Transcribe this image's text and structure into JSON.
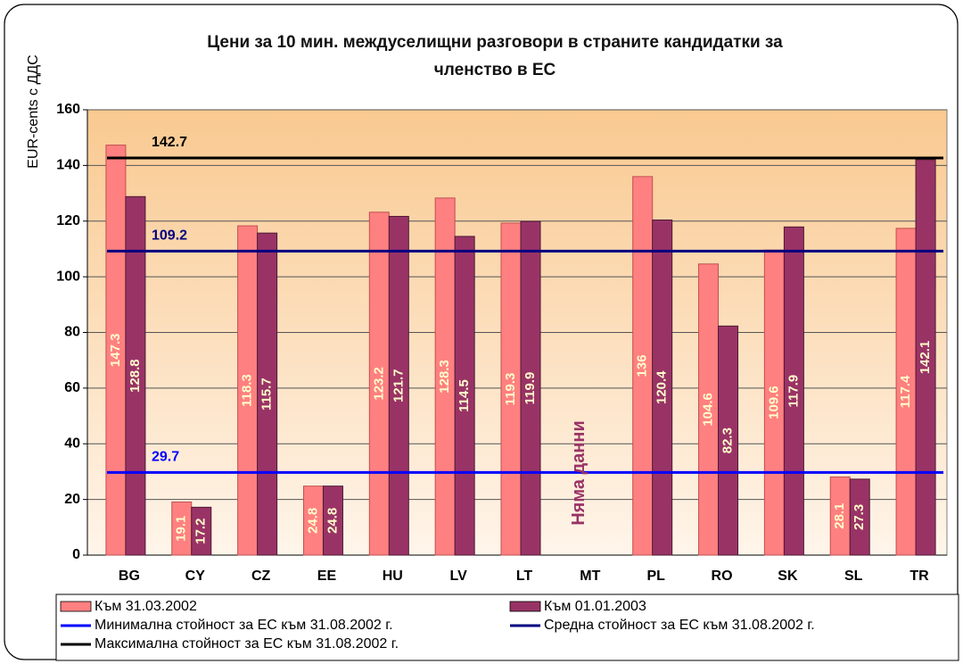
{
  "chart_data": {
    "type": "bar",
    "title": [
      "Цени за 10 мин. междуселищни разговори в страните кандидатки за",
      "членство в ЕС"
    ],
    "y_label": "EUR-cents с ДДС",
    "categories": [
      "BG",
      "CY",
      "CZ",
      "EE",
      "HU",
      "LV",
      "LT",
      "MT",
      "PL",
      "RO",
      "SK",
      "SL",
      "TR"
    ],
    "series": [
      {
        "name": "Към 31.03.2002",
        "color": "#ff8080",
        "values": [
          147.3,
          19.1,
          118.3,
          24.8,
          123.2,
          128.3,
          119.3,
          null,
          136,
          104.6,
          109.6,
          28.1,
          117.4
        ]
      },
      {
        "name": "Към 01.01.2003",
        "color": "#993366",
        "values": [
          128.8,
          17.2,
          115.7,
          24.8,
          121.7,
          114.5,
          119.9,
          null,
          120.4,
          82.3,
          117.9,
          27.3,
          142.1
        ]
      }
    ],
    "reference_lines": [
      {
        "name": "Минимална стойност за ЕС към 31.08.2002 г.",
        "value": 29.7,
        "color": "#0000ff"
      },
      {
        "name": "Средна стойност за ЕС към 31.08.2002 г.",
        "value": 109.2,
        "color": "#000080"
      },
      {
        "name": "Максимална стойност за ЕС към 31.08.2002 г.",
        "value": 142.7,
        "color": "#000000"
      }
    ],
    "annotation": "Няма данни",
    "ylim": [
      0,
      160
    ],
    "yticks": [
      0,
      20,
      40,
      60,
      80,
      100,
      120,
      140,
      160
    ],
    "grid": true
  }
}
